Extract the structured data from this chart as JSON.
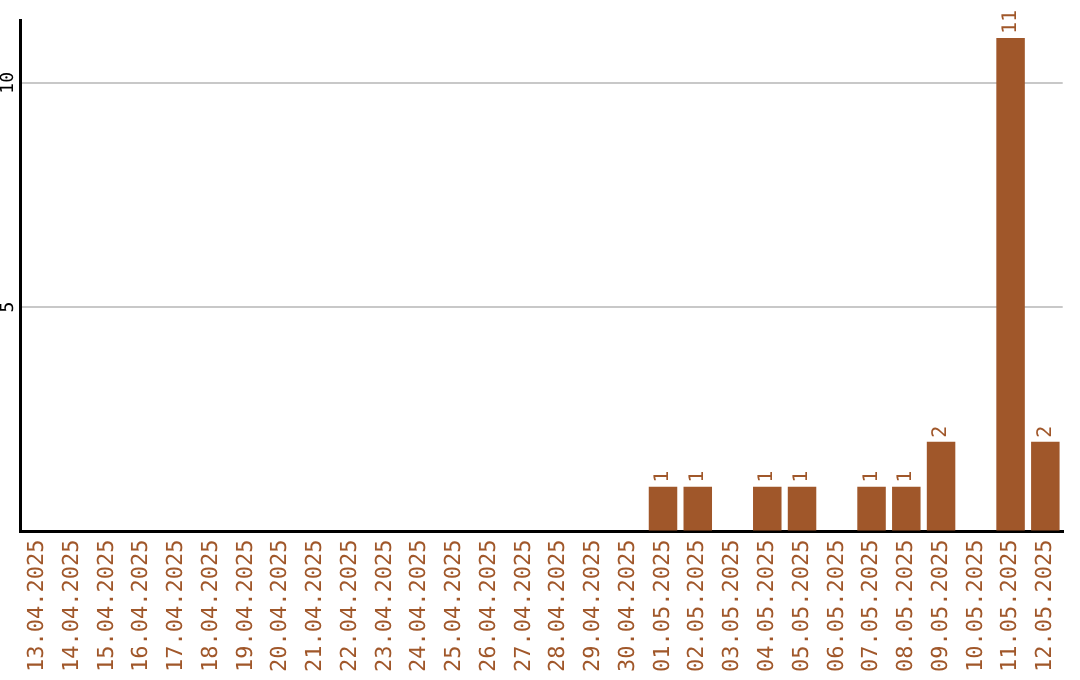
{
  "chart_data": {
    "type": "bar",
    "categories": [
      "13.04.2025",
      "14.04.2025",
      "15.04.2025",
      "16.04.2025",
      "17.04.2025",
      "18.04.2025",
      "19.04.2025",
      "20.04.2025",
      "21.04.2025",
      "22.04.2025",
      "23.04.2025",
      "24.04.2025",
      "25.04.2025",
      "26.04.2025",
      "27.04.2025",
      "28.04.2025",
      "29.04.2025",
      "30.04.2025",
      "01.05.2025",
      "02.05.2025",
      "03.05.2025",
      "04.05.2025",
      "05.05.2025",
      "06.05.2025",
      "07.05.2025",
      "08.05.2025",
      "09.05.2025",
      "10.05.2025",
      "11.05.2025",
      "12.05.2025"
    ],
    "values": [
      0,
      0,
      0,
      0,
      0,
      0,
      0,
      0,
      0,
      0,
      0,
      0,
      0,
      0,
      0,
      0,
      0,
      0,
      1,
      1,
      0,
      1,
      1,
      0,
      1,
      1,
      2,
      0,
      11,
      2
    ],
    "value_labels": [
      null,
      null,
      null,
      null,
      null,
      null,
      null,
      null,
      null,
      null,
      null,
      null,
      null,
      null,
      null,
      null,
      null,
      null,
      "1",
      "1",
      null,
      "1",
      "1",
      null,
      "1",
      "1",
      "2",
      null,
      "11",
      "2"
    ],
    "color": "#a0572a",
    "ylim": [
      0,
      11.4
    ],
    "yticks": [
      {
        "value": 0,
        "label": null
      },
      5,
      10
    ],
    "grid": "y",
    "legend": false
  }
}
